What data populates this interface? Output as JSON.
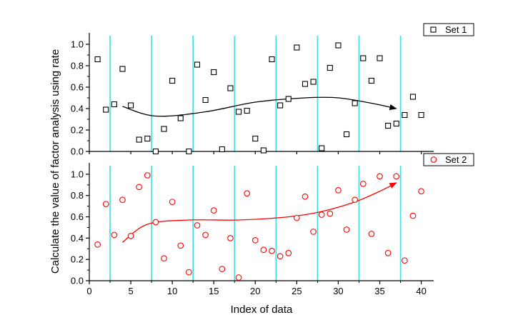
{
  "chart_data": {
    "type": "scatter",
    "shared_x_axis": {
      "label": "Index of data",
      "lim": [
        0,
        41.5
      ],
      "ticks": [
        0,
        5,
        10,
        15,
        20,
        25,
        30,
        35,
        40
      ],
      "tick_labels": [
        "0",
        "5",
        "10",
        "15",
        "20",
        "25",
        "30",
        "35",
        "40"
      ]
    },
    "shared_y_label": "Calculate the value of factor analysis using rate",
    "vertical_reference_lines": {
      "color": "#40e0e0",
      "x": [
        2.5,
        7.5,
        12.5,
        17.5,
        22.5,
        27.5,
        32.5,
        37.5
      ]
    },
    "panels": [
      {
        "ylim": [
          0,
          1.08
        ],
        "yticks": [
          0.0,
          0.2,
          0.4,
          0.6,
          0.8,
          1.0
        ],
        "ytick_labels": [
          "0.0",
          "0.2",
          "0.4",
          "0.6",
          "0.8",
          "1.0"
        ],
        "legend_position": "top-right",
        "series": {
          "name": "Set 1",
          "marker": "square",
          "color": "#000000",
          "x": [
            1,
            2,
            3,
            4,
            5,
            6,
            7,
            8,
            9,
            10,
            11,
            12,
            13,
            14,
            15,
            16,
            17,
            18,
            19,
            20,
            21,
            22,
            23,
            24,
            25,
            26,
            27,
            28,
            29,
            30,
            31,
            32,
            33,
            34,
            35,
            36,
            37,
            38,
            39,
            40
          ],
          "y": [
            0.86,
            0.39,
            0.44,
            0.77,
            0.43,
            0.11,
            0.12,
            0.0,
            0.21,
            0.66,
            0.31,
            0.0,
            0.81,
            0.48,
            0.74,
            0.02,
            0.59,
            0.37,
            0.38,
            0.12,
            0.01,
            0.86,
            0.43,
            0.49,
            0.97,
            0.63,
            0.65,
            0.03,
            0.78,
            0.99,
            0.16,
            0.45,
            0.87,
            0.66,
            0.87,
            0.24,
            0.26,
            0.34,
            0.51,
            0.34
          ]
        },
        "trend_arrow": {
          "color": "#000000",
          "x": [
            4,
            8,
            14,
            20,
            26,
            30,
            34,
            37
          ],
          "y": [
            0.42,
            0.33,
            0.37,
            0.46,
            0.5,
            0.5,
            0.45,
            0.4
          ]
        }
      },
      {
        "ylim": [
          0,
          1.08
        ],
        "yticks": [
          0.0,
          0.2,
          0.4,
          0.6,
          0.8,
          1.0
        ],
        "ytick_labels": [
          "0.0",
          "0.2",
          "0.4",
          "0.6",
          "0.8",
          "1.0"
        ],
        "legend_position": "top-right",
        "series": {
          "name": "Set 2",
          "marker": "circle",
          "color": "#ff0000",
          "x": [
            1,
            2,
            3,
            4,
            5,
            6,
            7,
            8,
            9,
            10,
            11,
            12,
            13,
            14,
            15,
            16,
            17,
            18,
            19,
            20,
            21,
            22,
            23,
            24,
            25,
            26,
            27,
            28,
            29,
            30,
            31,
            32,
            33,
            34,
            35,
            36,
            37,
            38,
            39,
            40
          ],
          "y": [
            0.34,
            0.72,
            0.43,
            0.76,
            0.42,
            0.88,
            0.99,
            0.55,
            0.21,
            0.74,
            0.33,
            0.08,
            0.52,
            0.43,
            0.66,
            0.11,
            0.4,
            0.03,
            0.82,
            0.38,
            0.29,
            0.28,
            0.23,
            0.26,
            0.59,
            0.79,
            0.46,
            0.62,
            0.63,
            0.85,
            0.48,
            0.76,
            0.91,
            0.44,
            0.98,
            0.26,
            0.98,
            0.19,
            0.61,
            0.84
          ]
        },
        "trend_arrow": {
          "color": "#ff0000",
          "x": [
            4,
            7,
            12,
            18,
            24,
            28,
            32,
            35,
            37
          ],
          "y": [
            0.36,
            0.53,
            0.57,
            0.57,
            0.6,
            0.65,
            0.74,
            0.84,
            0.92
          ]
        }
      }
    ]
  }
}
